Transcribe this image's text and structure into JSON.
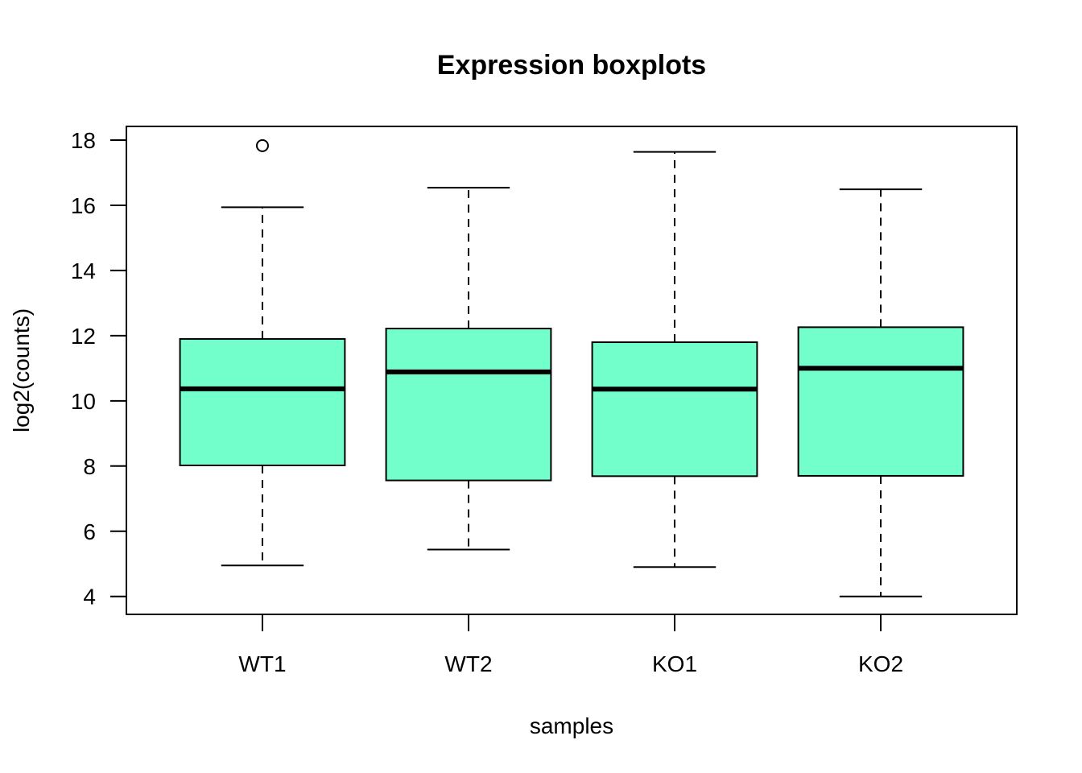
{
  "chart_data": {
    "type": "boxplot",
    "title": "Expression boxplots",
    "xlabel": "samples",
    "ylabel": "log2(counts)",
    "categories": [
      "WT1",
      "WT2",
      "KO1",
      "KO2"
    ],
    "y_ticks": [
      4,
      6,
      8,
      10,
      12,
      14,
      16,
      18
    ],
    "ylim": [
      3.45,
      18.42
    ],
    "grid": false,
    "legend": "none",
    "box_fill": "#73FFCC",
    "line_color": "#000000",
    "boxes": [
      {
        "category": "WT1",
        "whisker_low": 4.95,
        "q1": 8.02,
        "median": 10.37,
        "q3": 11.9,
        "whisker_high": 15.94,
        "outliers": [
          17.83
        ]
      },
      {
        "category": "WT2",
        "whisker_low": 5.44,
        "q1": 7.56,
        "median": 10.89,
        "q3": 12.22,
        "whisker_high": 16.54,
        "outliers": []
      },
      {
        "category": "KO1",
        "whisker_low": 4.9,
        "q1": 7.69,
        "median": 10.36,
        "q3": 11.8,
        "whisker_high": 17.64,
        "outliers": []
      },
      {
        "category": "KO2",
        "whisker_low": 4.0,
        "q1": 7.7,
        "median": 11.0,
        "q3": 12.26,
        "whisker_high": 16.49,
        "outliers": []
      }
    ]
  }
}
